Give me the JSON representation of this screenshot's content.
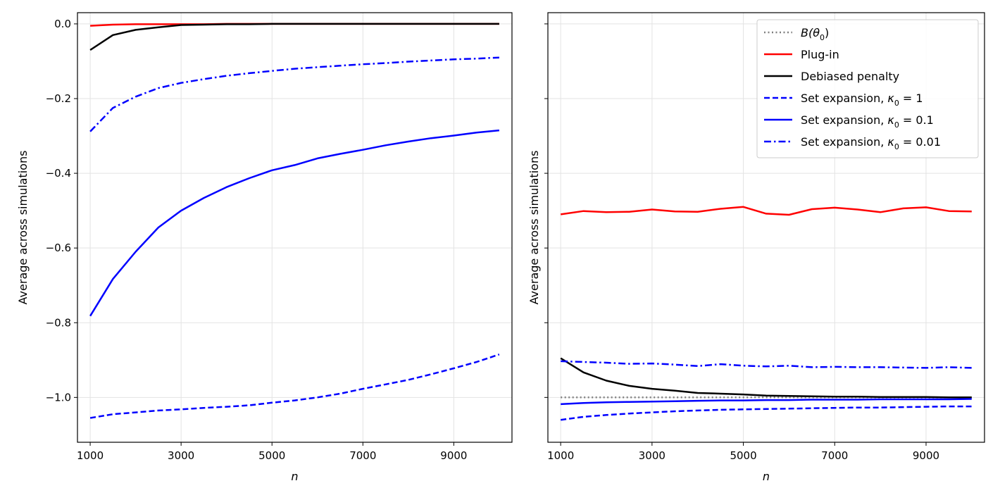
{
  "chart_data": [
    {
      "type": "line",
      "panel": "left",
      "xlabel": "n",
      "ylabel": "Average across simulations",
      "xlim": [
        720,
        10280
      ],
      "ylim": [
        -1.12,
        0.03
      ],
      "x_ticks": [
        1000,
        3000,
        5000,
        7000,
        9000
      ],
      "y_ticks": [
        0.0,
        -0.2,
        -0.4,
        -0.6,
        -0.8,
        -1.0
      ],
      "y_tick_labels": [
        "0.0",
        "−0.2",
        "−0.4",
        "−0.6",
        "−0.8",
        "−1.0"
      ],
      "grid": true,
      "x": [
        1000,
        1500,
        2000,
        2500,
        3000,
        3500,
        4000,
        4500,
        5000,
        5500,
        6000,
        6500,
        7000,
        7500,
        8000,
        8500,
        9000,
        9500,
        10000
      ],
      "series": [
        {
          "key": "plugin",
          "color": "#ff0000",
          "dash": "solid",
          "values": [
            -0.005,
            -0.002,
            -0.001,
            -0.001,
            -0.001,
            -0.001,
            0,
            0,
            0,
            0,
            0,
            0,
            0,
            0,
            0,
            0,
            0,
            0,
            0
          ]
        },
        {
          "key": "debiased",
          "color": "#000000",
          "dash": "solid",
          "values": [
            -0.07,
            -0.03,
            -0.016,
            -0.009,
            -0.003,
            -0.002,
            -0.001,
            -0.001,
            0,
            0,
            0,
            0,
            0,
            0,
            0,
            0,
            0,
            0,
            0
          ]
        },
        {
          "key": "k1",
          "color": "#0000ff",
          "dash": "dashed",
          "values": [
            -1.055,
            -1.045,
            -1.04,
            -1.035,
            -1.032,
            -1.028,
            -1.025,
            -1.021,
            -1.014,
            -1.008,
            -1.0,
            -0.99,
            -0.977,
            -0.965,
            -0.953,
            -0.938,
            -0.922,
            -0.905,
            -0.885
          ]
        },
        {
          "key": "k01",
          "color": "#0000ff",
          "dash": "solid",
          "values": [
            -0.782,
            -0.683,
            -0.61,
            -0.545,
            -0.5,
            -0.466,
            -0.437,
            -0.413,
            -0.392,
            -0.378,
            -0.36,
            -0.348,
            -0.337,
            -0.325,
            -0.315,
            -0.306,
            -0.299,
            -0.291,
            -0.285
          ]
        },
        {
          "key": "k001",
          "color": "#0000ff",
          "dash": "dashdot",
          "values": [
            -0.288,
            -0.225,
            -0.195,
            -0.172,
            -0.158,
            -0.148,
            -0.139,
            -0.132,
            -0.126,
            -0.12,
            -0.116,
            -0.112,
            -0.108,
            -0.105,
            -0.101,
            -0.098,
            -0.095,
            -0.093,
            -0.09
          ]
        }
      ]
    },
    {
      "type": "line",
      "panel": "right",
      "xlabel": "n",
      "ylabel": "Average across simulations",
      "xlim": [
        720,
        10280
      ],
      "ylim": [
        -1.12,
        0.03
      ],
      "x_ticks": [
        1000,
        3000,
        5000,
        7000,
        9000
      ],
      "y_ticks": [
        0.0,
        -0.2,
        -0.4,
        -0.6,
        -0.8,
        -1.0
      ],
      "grid": true,
      "legend_position": "top-right",
      "x": [
        1000,
        1500,
        2000,
        2500,
        3000,
        3500,
        4000,
        4500,
        5000,
        5500,
        6000,
        6500,
        7000,
        7500,
        8000,
        8500,
        9000,
        9500,
        10000
      ],
      "series": [
        {
          "key": "btheta",
          "color": "#808080",
          "dash": "dotted",
          "values": [
            -1.0,
            -1.0,
            -1.0,
            -1.0,
            -1.0,
            -1.0,
            -1.0,
            -1.0,
            -1.0,
            -1.0,
            -1.0,
            -1.0,
            -1.0,
            -1.0,
            -1.0,
            -1.0,
            -1.0,
            -1.0,
            -1.0
          ]
        },
        {
          "key": "plugin",
          "color": "#ff0000",
          "dash": "solid",
          "values": [
            -0.51,
            -0.501,
            -0.504,
            -0.503,
            -0.497,
            -0.502,
            -0.503,
            -0.495,
            -0.49,
            -0.508,
            -0.511,
            -0.496,
            -0.492,
            -0.497,
            -0.504,
            -0.494,
            -0.491,
            -0.501,
            -0.502
          ]
        },
        {
          "key": "debiased",
          "color": "#000000",
          "dash": "solid",
          "values": [
            -0.895,
            -0.933,
            -0.955,
            -0.969,
            -0.977,
            -0.982,
            -0.988,
            -0.99,
            -0.992,
            -0.995,
            -0.996,
            -0.997,
            -0.998,
            -0.998,
            -0.999,
            -0.999,
            -0.999,
            -1.0,
            -1.0
          ]
        },
        {
          "key": "k1",
          "color": "#0000ff",
          "dash": "dashed",
          "values": [
            -1.06,
            -1.052,
            -1.047,
            -1.043,
            -1.04,
            -1.037,
            -1.035,
            -1.033,
            -1.032,
            -1.031,
            -1.03,
            -1.029,
            -1.028,
            -1.027,
            -1.027,
            -1.026,
            -1.025,
            -1.024,
            -1.024
          ]
        },
        {
          "key": "k01",
          "color": "#0000ff",
          "dash": "solid",
          "values": [
            -1.018,
            -1.015,
            -1.013,
            -1.012,
            -1.011,
            -1.01,
            -1.009,
            -1.008,
            -1.008,
            -1.007,
            -1.007,
            -1.006,
            -1.006,
            -1.006,
            -1.005,
            -1.005,
            -1.005,
            -1.005,
            -1.004
          ]
        },
        {
          "key": "k001",
          "color": "#0000ff",
          "dash": "dashdot",
          "values": [
            -0.903,
            -0.905,
            -0.907,
            -0.91,
            -0.909,
            -0.912,
            -0.916,
            -0.911,
            -0.915,
            -0.917,
            -0.915,
            -0.919,
            -0.918,
            -0.919,
            -0.919,
            -0.92,
            -0.921,
            -0.919,
            -0.921
          ]
        }
      ],
      "legend": [
        {
          "key": "btheta",
          "pre": "",
          "math_base": "B(θ",
          "math_sub": "0",
          "math_post": ")",
          "color": "#808080",
          "dash": "dotted"
        },
        {
          "key": "plugin",
          "pre": "Plug-in",
          "math_base": "",
          "math_sub": "",
          "math_post": "",
          "color": "#ff0000",
          "dash": "solid"
        },
        {
          "key": "debiased",
          "pre": "Debiased penalty",
          "math_base": "",
          "math_sub": "",
          "math_post": "",
          "color": "#000000",
          "dash": "solid"
        },
        {
          "key": "k1",
          "pre": "Set expansion, ",
          "math_base": "κ",
          "math_sub": "0",
          "math_post": " = 1",
          "color": "#0000ff",
          "dash": "dashed"
        },
        {
          "key": "k01",
          "pre": "Set expansion, ",
          "math_base": "κ",
          "math_sub": "0",
          "math_post": " = 0.1",
          "color": "#0000ff",
          "dash": "solid"
        },
        {
          "key": "k001",
          "pre": "Set expansion, ",
          "math_base": "κ",
          "math_sub": "0",
          "math_post": " = 0.01",
          "color": "#0000ff",
          "dash": "dashdot"
        }
      ]
    }
  ]
}
